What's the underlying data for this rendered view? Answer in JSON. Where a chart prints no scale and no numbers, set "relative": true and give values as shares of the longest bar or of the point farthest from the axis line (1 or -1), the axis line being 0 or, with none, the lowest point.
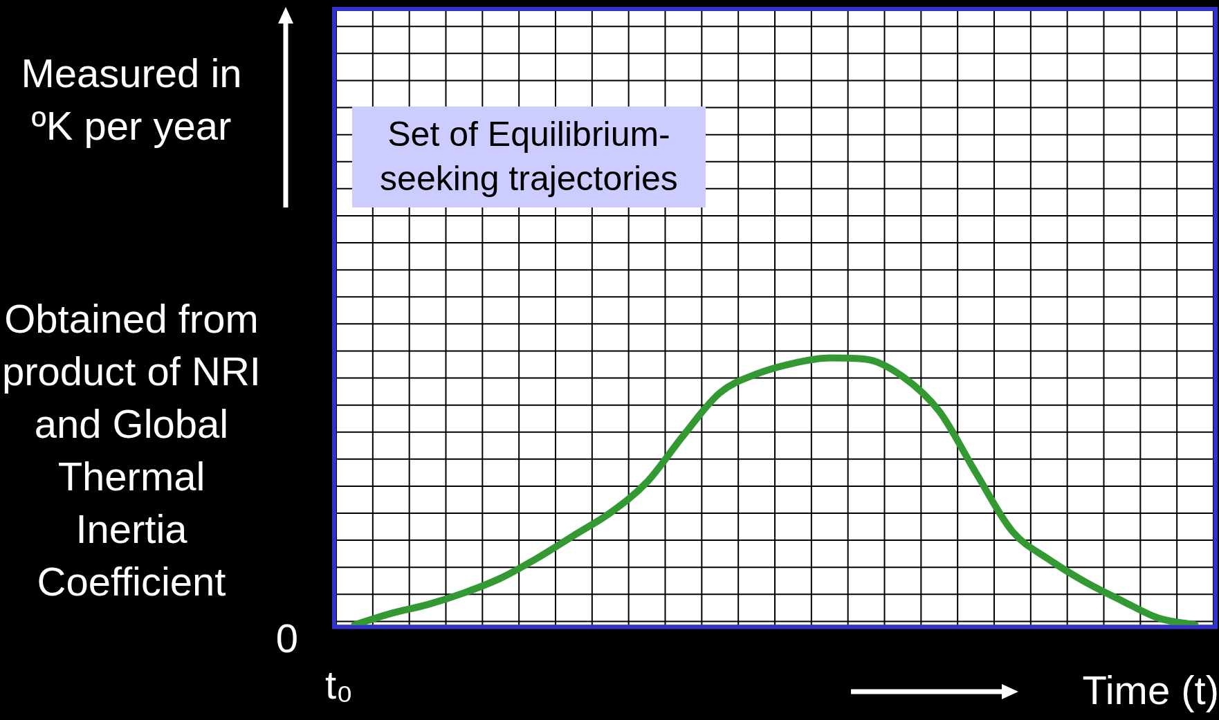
{
  "chart_data": {
    "type": "line",
    "relative": true,
    "grid": true,
    "legend": false,
    "marker": "none",
    "line_style": "solid",
    "categories": [
      null,
      null,
      null,
      null,
      null,
      null,
      null,
      null,
      null,
      null,
      null,
      null,
      null,
      null,
      null,
      null,
      null,
      null,
      null,
      null,
      null,
      null,
      null,
      null
    ],
    "series": [
      {
        "color": "#339933",
        "values": [
          0,
          0.043,
          0.076,
          0.12,
          0.175,
          0.25,
          0.335,
          0.42,
          0.535,
          0.71,
          0.87,
          0.94,
          0.98,
          1.0,
          0.995,
          0.93,
          0.8,
          0.57,
          0.35,
          0.245,
          0.16,
          0.09,
          0.025,
          0
        ]
      }
    ],
    "annotations": [
      "Measured in ºK per year",
      "Set of Equilibrium-seeking trajectories",
      "Obtained from product of  NRI and Global Thermal Inertia Coefficient",
      "0",
      "t₀",
      "Time (t)"
    ]
  }
}
